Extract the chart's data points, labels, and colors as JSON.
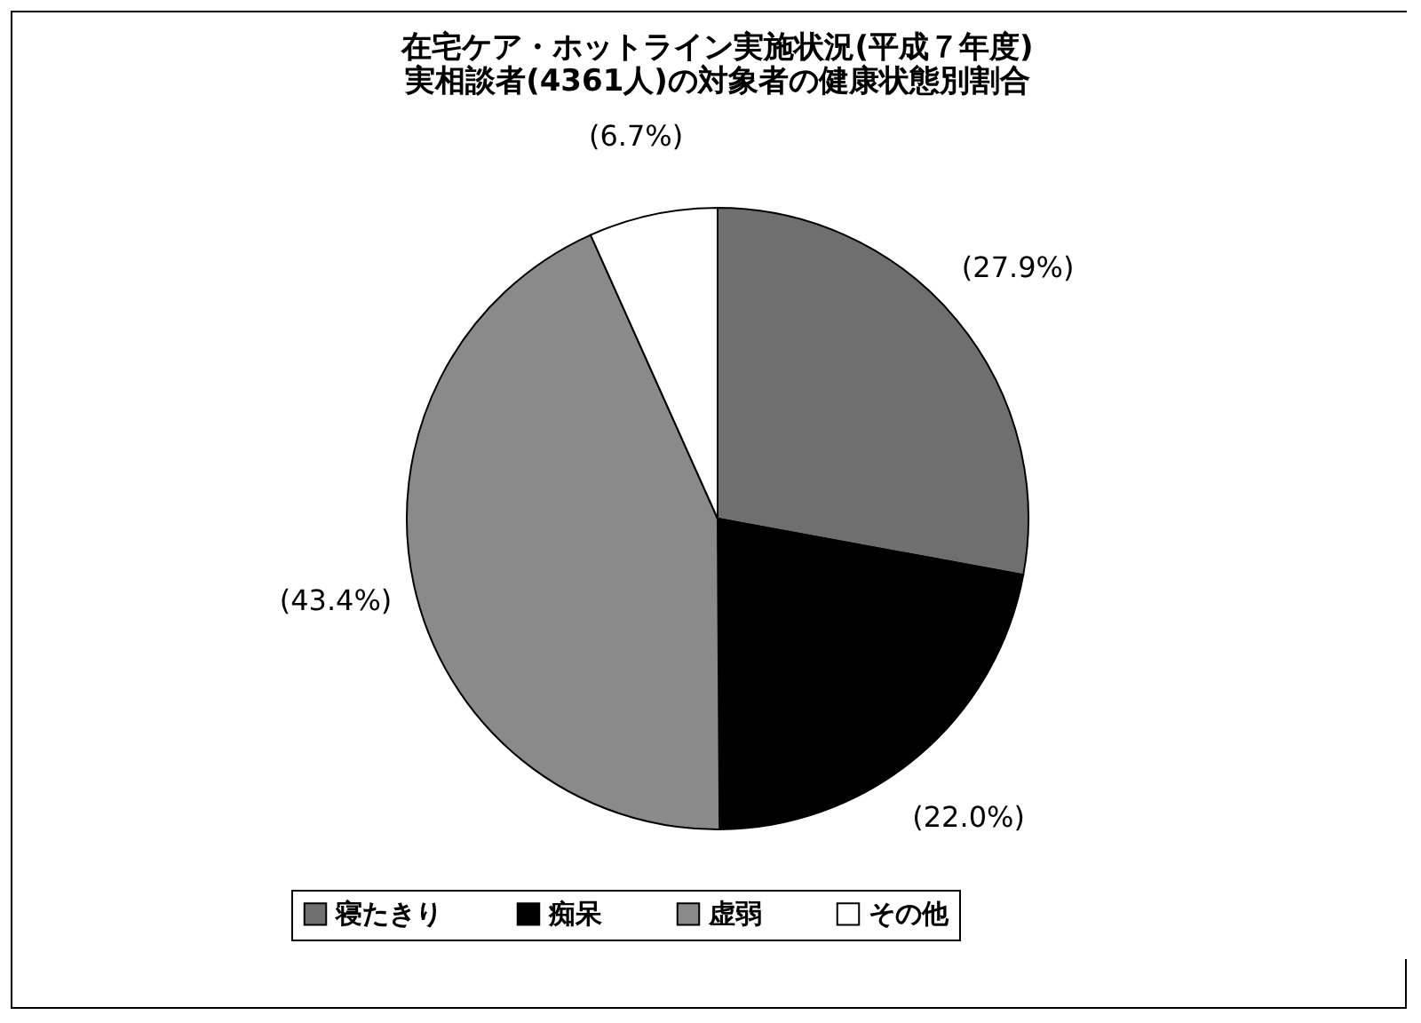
{
  "chart_data": {
    "type": "pie",
    "title": "在宅ケア・ホットライン実施状況(平成７年度)\n実相談者(4361人)の対象者の健康状態別割合",
    "categories": [
      "寝たきり",
      "痴呆",
      "虚弱",
      "その他"
    ],
    "values": [
      27.9,
      22.0,
      43.4,
      6.7
    ],
    "colors": [
      "#6f6f6f",
      "#000000",
      "#8a8a8a",
      "#ffffff"
    ],
    "value_labels": [
      "(27.9%)",
      "(22.0%)",
      "(43.4%)",
      "(6.7%)"
    ],
    "legend": "bottom"
  }
}
